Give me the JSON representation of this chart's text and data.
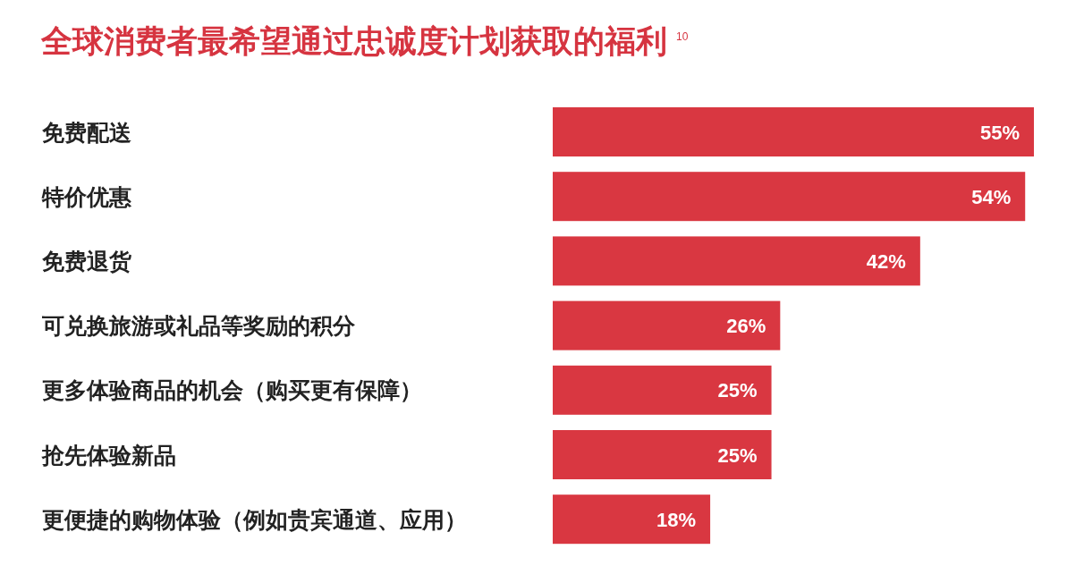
{
  "chart_data": {
    "type": "bar",
    "orientation": "horizontal",
    "title": "全球消费者最希望通过忠诚度计划获取的福利$^{10}$",
    "categories": [
      "免费配送",
      "特价优惠",
      "免费退货",
      "可兑换旅游或礼品等奖励的积分",
      "更多体验商品的机会（购买更有保障）",
      "抢先体验新品",
      "更便捷的购物体验（例如贵宾通道、应用）"
    ],
    "values": [
      55,
      54,
      42,
      26,
      25,
      25,
      18
    ],
    "value_labels": [
      "55%",
      "54%",
      "42%",
      "26%",
      "25%",
      "25%",
      "18%"
    ],
    "color": "#d93741"
  }
}
